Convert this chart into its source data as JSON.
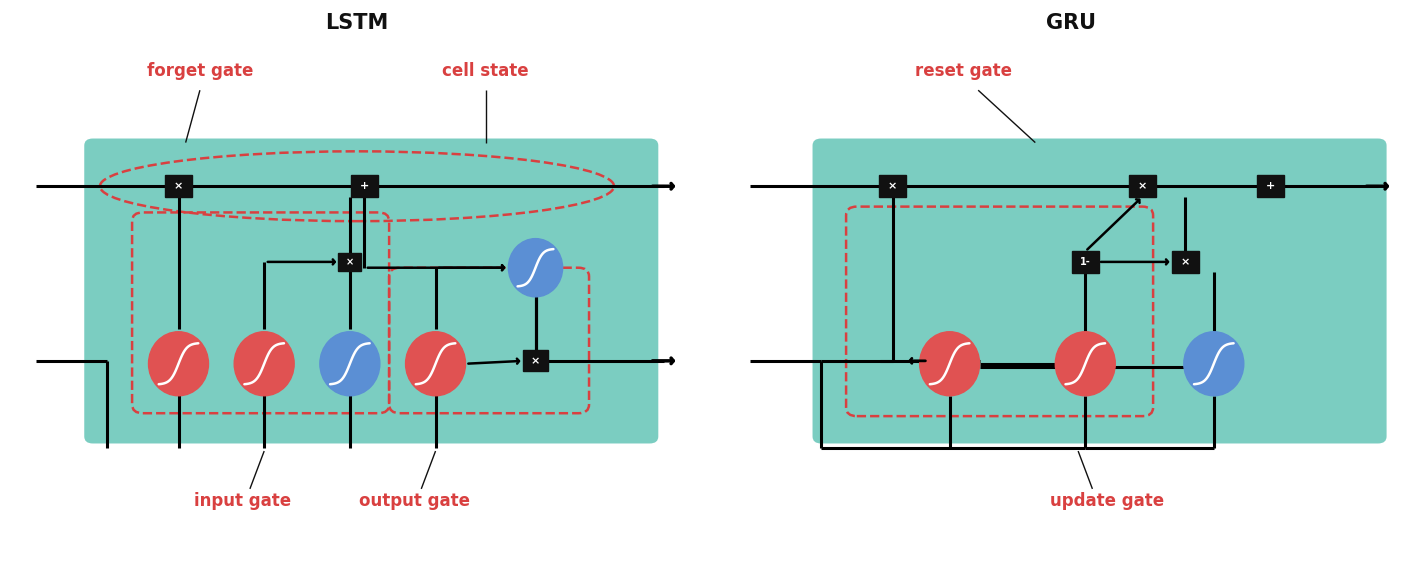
{
  "bg_color": "#ffffff",
  "teal_color": "#6dc8bb",
  "red_color": "#e05252",
  "blue_color": "#5b8fd4",
  "dashed_red": "#d94040",
  "black": "#111111",
  "lstm_title": "LSTM",
  "gru_title": "GRU",
  "label_forget": "forget gate",
  "label_cell": "cell state",
  "label_input": "input gate",
  "label_output": "output gate",
  "label_reset": "reset gate",
  "label_update": "update gate",
  "label_color": "#d94040",
  "title_fontsize": 15,
  "label_fontsize": 12
}
